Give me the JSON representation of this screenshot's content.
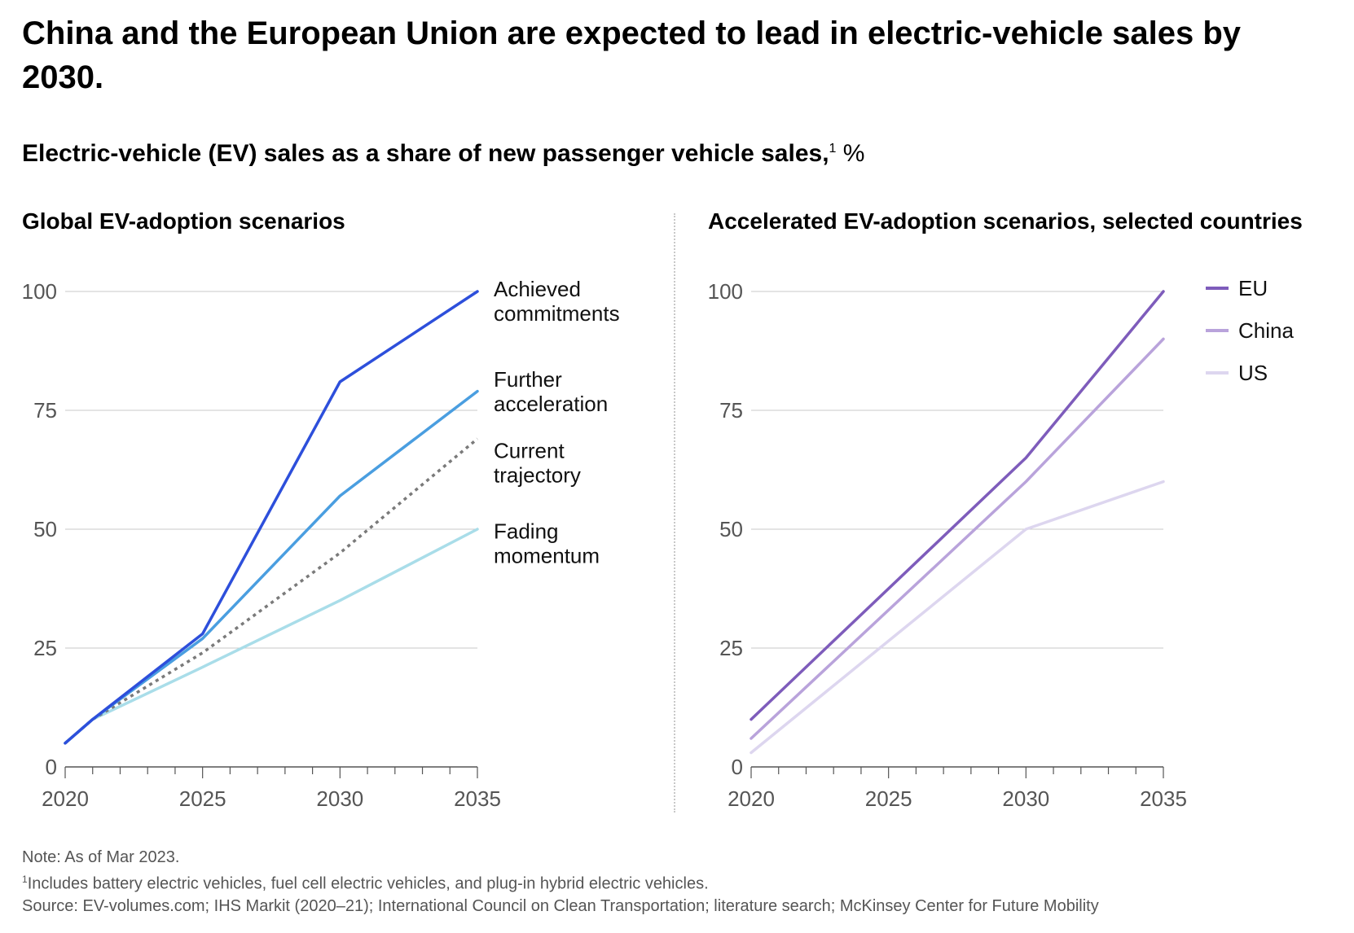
{
  "header": {
    "title": "China and the European Union are expected to lead in electric-vehicle sales by 2030.",
    "subtitle": "Electric-vehicle (EV) sales as a share of new passenger vehicle sales,",
    "subtitle_sup": "1",
    "subtitle_unit": " %"
  },
  "colors": {
    "achieved": "#2D4FDB",
    "further": "#4A9EE0",
    "current": "#7a7a7a",
    "fading": "#A9DDE9",
    "eu": "#7E5CBB",
    "china": "#B9A3DB",
    "us": "#DDD6EF",
    "grid": "#c8c8c8",
    "axis": "#555555"
  },
  "chart_data": [
    {
      "type": "line",
      "title": "Global EV-adoption scenarios",
      "x": [
        2020,
        2021,
        2025,
        2030,
        2035
      ],
      "xticks": [
        2020,
        2025,
        2030,
        2035
      ],
      "yticks": [
        0,
        25,
        50,
        75,
        100
      ],
      "xlim": [
        2020,
        2035
      ],
      "ylim": [
        0,
        100
      ],
      "series": [
        {
          "name": "Fading momentum",
          "label_lines": [
            "Fading",
            "momentum"
          ],
          "values": [
            5,
            10,
            21,
            35,
            50
          ],
          "color_key": "fading",
          "dashed": false
        },
        {
          "name": "Current trajectory",
          "label_lines": [
            "Current",
            "trajectory"
          ],
          "values": [
            5,
            10,
            24,
            45,
            69
          ],
          "color_key": "current",
          "dashed": true
        },
        {
          "name": "Further acceleration",
          "label_lines": [
            "Further",
            "acceleration"
          ],
          "values": [
            5,
            10,
            27,
            57,
            79
          ],
          "color_key": "further",
          "dashed": false
        },
        {
          "name": "Achieved commitments",
          "label_lines": [
            "Achieved",
            "commitments"
          ],
          "values": [
            5,
            10,
            28,
            81,
            100
          ],
          "color_key": "achieved",
          "dashed": false
        }
      ]
    },
    {
      "type": "line",
      "title": "Accelerated EV-adoption scenarios, selected countries",
      "x": [
        2020,
        2030,
        2035
      ],
      "xticks": [
        2020,
        2025,
        2030,
        2035
      ],
      "yticks": [
        0,
        25,
        50,
        75,
        100
      ],
      "xlim": [
        2020,
        2035
      ],
      "ylim": [
        0,
        100
      ],
      "legend": "top-right",
      "series": [
        {
          "name": "EU",
          "values": [
            10,
            65,
            100
          ],
          "color_key": "eu"
        },
        {
          "name": "China",
          "values": [
            6,
            60,
            90
          ],
          "color_key": "china"
        },
        {
          "name": "US",
          "values": [
            3,
            50,
            60
          ],
          "color_key": "us"
        }
      ]
    }
  ],
  "footer": {
    "note": "Note: As of Mar 2023.",
    "footnote_mark": "1",
    "footnote": "Includes battery electric vehicles, fuel cell electric vehicles, and plug-in hybrid electric vehicles.",
    "source": "Source: EV-volumes.com; IHS Markit (2020–21); International Council on Clean Transportation; literature search; McKinsey Center for Future Mobility"
  }
}
